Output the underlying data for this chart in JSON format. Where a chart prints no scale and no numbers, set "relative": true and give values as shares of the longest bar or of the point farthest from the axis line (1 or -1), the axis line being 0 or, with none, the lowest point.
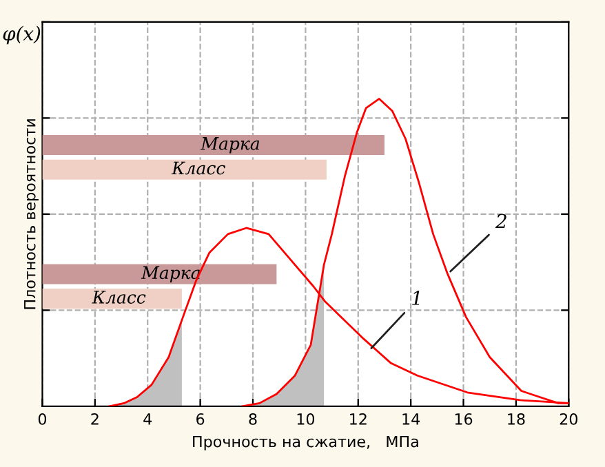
{
  "chart_data": {
    "type": "line",
    "relative": true,
    "title": "φ(x)",
    "xlabel": "Прочность на сжатие,   МПа",
    "ylabel": "Плотность вероятности",
    "xlim": [
      0,
      20
    ],
    "xticks": [
      0,
      2,
      4,
      6,
      8,
      10,
      12,
      14,
      16,
      18,
      20
    ],
    "grid": true,
    "tick_labels": "x",
    "annotations": [
      {
        "text": "1",
        "x": 12.4,
        "y": 0.18
      },
      {
        "text": "2",
        "x": 15.4,
        "y": 0.43
      }
    ],
    "bands": [
      {
        "axis": "x",
        "from": 0,
        "to": 13,
        "label": "Марка",
        "color": "#c99999"
      },
      {
        "axis": "x",
        "from": 0,
        "to": 10.8,
        "label": "Класс",
        "color": "#f0d0c4"
      },
      {
        "axis": "x",
        "from": 0,
        "to": 8.9,
        "label": "Марка",
        "color": "#c99999"
      },
      {
        "axis": "x",
        "from": 0,
        "to": 5.3,
        "label": "Класс",
        "color": "#f0d0c4"
      }
    ],
    "series": [
      {
        "type": "area",
        "color": "#c0c0c0",
        "x": [
          2.55,
          3.1,
          3.6,
          4.15,
          4.8,
          5.3
        ],
        "values": [
          0,
          0.01,
          0.03,
          0.07,
          0.16,
          0.28
        ]
      },
      {
        "type": "area",
        "color": "#c0c0c0",
        "x": [
          7.6,
          8.25,
          8.9,
          9.6,
          10.2,
          10.7
        ],
        "values": [
          0,
          0.01,
          0.04,
          0.1,
          0.2,
          0.46
        ]
      },
      {
        "color": "#ff0000",
        "x": [
          2.55,
          3.1,
          3.6,
          4.15,
          4.8,
          5.3,
          5.85,
          6.35,
          7.05,
          7.75,
          8.6,
          9.3,
          10.3,
          10.75,
          12.2,
          13.25,
          14.25,
          16.15,
          18.15,
          20
        ],
        "values": [
          0,
          0.01,
          0.03,
          0.07,
          0.16,
          0.28,
          0.41,
          0.5,
          0.56,
          0.58,
          0.56,
          0.49,
          0.39,
          0.34,
          0.22,
          0.14,
          0.1,
          0.045,
          0.02,
          0.01
        ]
      },
      {
        "color": "#ff0000",
        "x": [
          7.6,
          8.25,
          8.9,
          9.6,
          10.2,
          10.7,
          11.0,
          11.5,
          11.95,
          12.3,
          12.8,
          13.3,
          13.8,
          14.3,
          14.85,
          15.4,
          16.1,
          17.0,
          18.2,
          19.6,
          20
        ],
        "values": [
          0,
          0.01,
          0.04,
          0.1,
          0.2,
          0.46,
          0.56,
          0.75,
          0.89,
          0.97,
          1.0,
          0.96,
          0.87,
          0.73,
          0.56,
          0.43,
          0.29,
          0.16,
          0.05,
          0.01,
          0.01
        ]
      }
    ]
  }
}
